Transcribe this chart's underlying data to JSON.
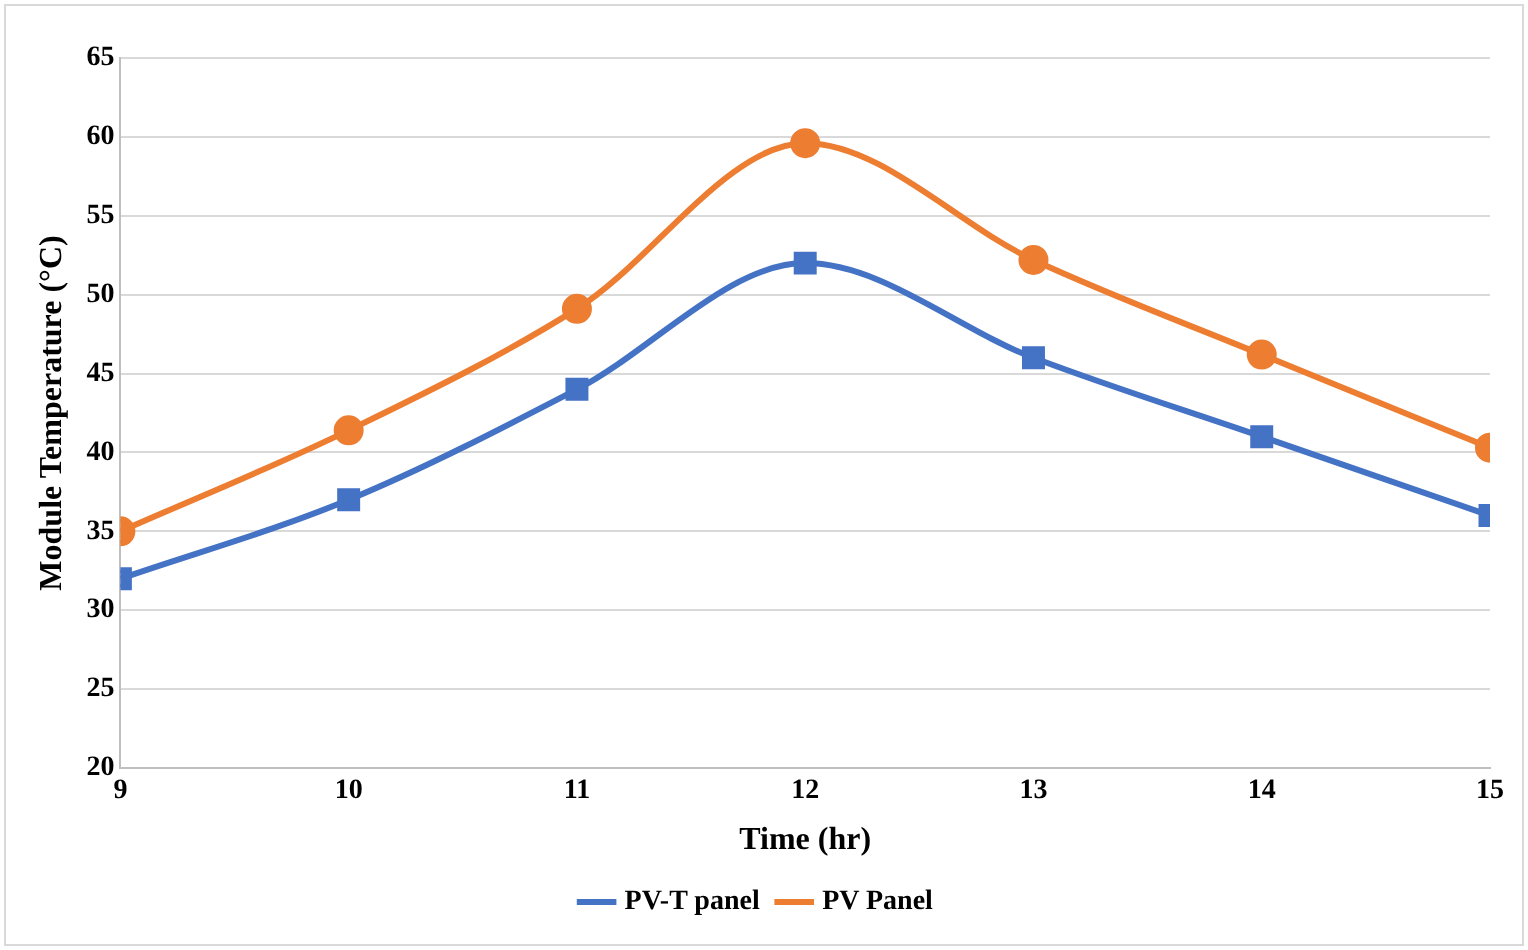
{
  "chart_data": {
    "type": "line",
    "xlabel": "Time (hr)",
    "ylabel": "Module Temperature (°C)",
    "x": [
      9,
      10,
      11,
      12,
      13,
      14,
      15
    ],
    "xlim": [
      9,
      15
    ],
    "xticks": [
      9,
      10,
      11,
      12,
      13,
      14,
      15
    ],
    "ylim": [
      20,
      65
    ],
    "yticks": [
      20,
      25,
      30,
      35,
      40,
      45,
      50,
      55,
      60,
      65
    ],
    "grid": "y",
    "legend": "bottom",
    "series": [
      {
        "name": "PV-T panel",
        "color": "#4472c4",
        "marker": "square",
        "values": [
          32,
          37,
          44,
          52,
          46,
          41,
          36
        ]
      },
      {
        "name": "PV Panel",
        "color": "#ed7d31",
        "marker": "circle",
        "values": [
          35,
          41.4,
          49.1,
          59.6,
          52.2,
          46.2,
          40.3
        ]
      }
    ]
  }
}
